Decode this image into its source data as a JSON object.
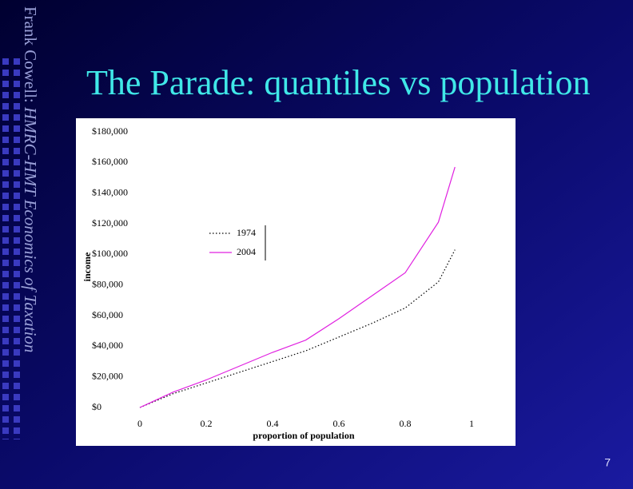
{
  "slide": {
    "title": "The Parade: quantiles vs population",
    "sidebar_author": "Frank Cowell: ",
    "sidebar_course": "HMRC-HMT Economics of Taxation",
    "page_number": "7"
  },
  "chart_data": {
    "type": "line",
    "x_label": "proportion of population",
    "y_label": "income",
    "x": [
      0,
      0.1,
      0.2,
      0.3,
      0.4,
      0.5,
      0.6,
      0.7,
      0.8,
      0.9,
      0.95
    ],
    "series": [
      {
        "name": "1974",
        "color": "#000000",
        "dash": "dotted",
        "values": [
          0,
          9000,
          16000,
          23000,
          30000,
          37000,
          46000,
          55000,
          65000,
          82000,
          103000
        ]
      },
      {
        "name": "2004",
        "color": "#e020e0",
        "dash": "solid",
        "values": [
          0,
          10000,
          18000,
          27000,
          36000,
          44000,
          58000,
          73000,
          88000,
          121000,
          157000
        ]
      }
    ],
    "xlim": [
      0,
      1
    ],
    "xticks": [
      0,
      0.2,
      0.4,
      0.6,
      0.8,
      1
    ],
    "ylim": [
      0,
      180000
    ],
    "yticks": [
      {
        "value": 0,
        "label": "$0"
      },
      {
        "value": 20000,
        "label": "$20,000"
      },
      {
        "value": 40000,
        "label": "$40,000"
      },
      {
        "value": 60000,
        "label": "$60,000"
      },
      {
        "value": 80000,
        "label": "$80,000"
      },
      {
        "value": 100000,
        "label": "$100,000"
      },
      {
        "value": 120000,
        "label": "$120,000"
      },
      {
        "value": 140000,
        "label": "$140,000"
      },
      {
        "value": 160000,
        "label": "$160,000"
      },
      {
        "value": 180000,
        "label": "$180,000"
      }
    ],
    "grid": false,
    "legend": "center"
  }
}
